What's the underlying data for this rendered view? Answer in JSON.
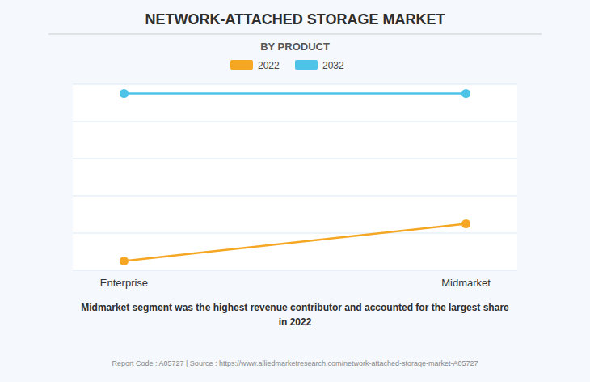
{
  "chart_data": {
    "type": "line",
    "title": "NETWORK-ATTACHED STORAGE MARKET",
    "subtitle": "BY PRODUCT",
    "categories": [
      "Enterprise",
      "Midmarket"
    ],
    "series": [
      {
        "name": "2022",
        "color": "#F5A623",
        "values": [
          0.5,
          2.5
        ],
        "marker": "o"
      },
      {
        "name": "2032",
        "color": "#4DC3E8",
        "values": [
          9.5,
          9.5
        ],
        "marker": "o"
      }
    ],
    "ylim": [
      0,
      10
    ],
    "yticks": [
      0,
      2,
      4,
      6,
      8,
      10
    ],
    "grid": true,
    "tick_labels": "x",
    "legend": "top",
    "caption": "Midmarket segment was the highest revenue contributor and accounted for the largest share\nin 2022",
    "footer": "Report Code : A05727  |  Source : https://www.alliedmarketresearch.com/network-attached-storage-market-A05727"
  }
}
